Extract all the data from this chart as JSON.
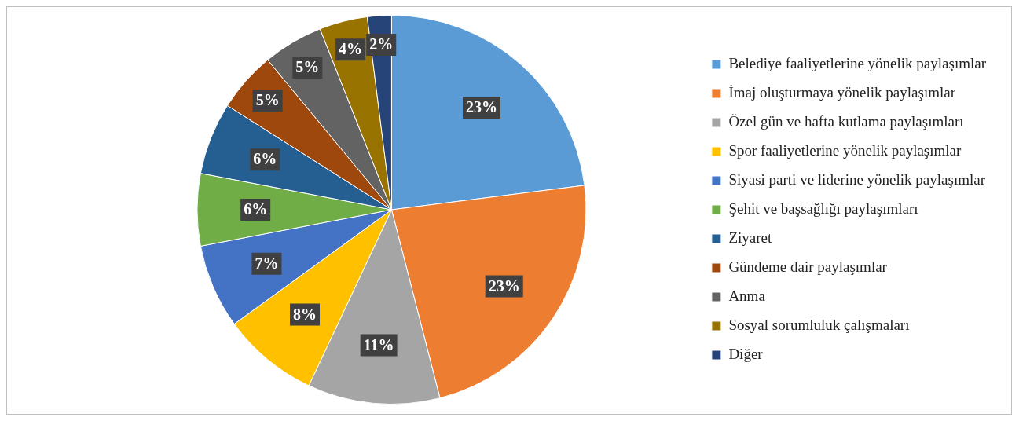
{
  "chart_data": {
    "type": "pie",
    "categories": [
      "Belediye faaliyetlerine yönelik paylaşımlar",
      "İmaj oluşturmaya yönelik paylaşımlar",
      "Özel gün ve hafta kutlama paylaşımları",
      "Spor faaliyetlerine yönelik paylaşımlar",
      "Siyasi parti ve liderine yönelik paylaşımlar",
      "Şehit ve başsağlığı paylaşımları",
      "Ziyaret",
      "Gündeme dair paylaşımlar",
      "Anma",
      "Sosyal sorumluluk çalışmaları",
      "Diğer"
    ],
    "values": [
      23,
      23,
      11,
      8,
      7,
      6,
      6,
      5,
      5,
      4,
      2
    ],
    "colors": [
      "#5b9bd5",
      "#ed7d31",
      "#a5a5a5",
      "#ffc000",
      "#4472c4",
      "#70ad47",
      "#255e91",
      "#9e480e",
      "#636363",
      "#997300",
      "#264478"
    ],
    "value_labels": [
      "23%",
      "23%",
      "11%",
      "8%",
      "7%",
      "6%",
      "6%",
      "5%",
      "5%",
      "4%",
      "2%"
    ],
    "legend": "right"
  }
}
